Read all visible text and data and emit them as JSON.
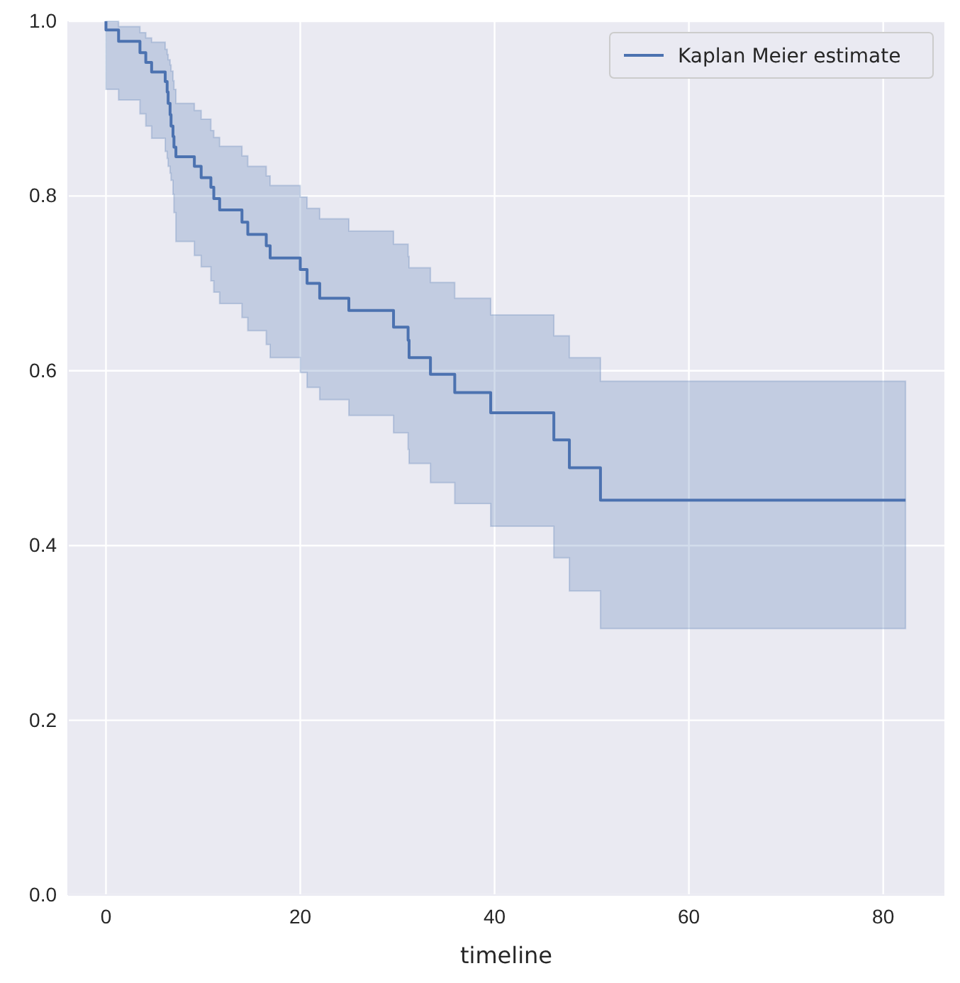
{
  "chart_data": {
    "type": "step",
    "xlabel": "timeline",
    "x": [
      0,
      0,
      1.3,
      3.5,
      4.1,
      4.7,
      6.1,
      6.3,
      6.4,
      6.6,
      6.7,
      6.9,
      7.0,
      7.2,
      9.1,
      9.8,
      10.8,
      11.1,
      11.7,
      14.0,
      14.6,
      16.5,
      16.9,
      20.0,
      20.7,
      22.0,
      25.0,
      29.6,
      31.1,
      31.2,
      33.4,
      35.9,
      39.6,
      46.1,
      47.7,
      50.9,
      82.3
    ],
    "series": [
      {
        "name": "Kaplan Meier estimate",
        "color": "#4c72b0",
        "values": [
          1.0,
          0.99,
          0.977,
          0.964,
          0.953,
          0.942,
          0.931,
          0.919,
          0.906,
          0.893,
          0.88,
          0.868,
          0.856,
          0.845,
          0.834,
          0.821,
          0.81,
          0.797,
          0.784,
          0.77,
          0.756,
          0.743,
          0.729,
          0.716,
          0.7,
          0.683,
          0.669,
          0.65,
          0.635,
          0.615,
          0.596,
          0.575,
          0.552,
          0.521,
          0.489,
          0.452,
          0.452
        ],
        "lower": [
          0.922,
          0.922,
          0.91,
          0.894,
          0.88,
          0.866,
          0.851,
          0.843,
          0.834,
          0.826,
          0.818,
          0.802,
          0.781,
          0.748,
          0.732,
          0.719,
          0.703,
          0.69,
          0.677,
          0.661,
          0.646,
          0.63,
          0.615,
          0.598,
          0.581,
          0.567,
          0.549,
          0.529,
          0.51,
          0.494,
          0.472,
          0.448,
          0.422,
          0.386,
          0.348,
          0.305,
          0.305
        ],
        "upper": [
          1.0,
          1.0,
          0.994,
          0.987,
          0.981,
          0.976,
          0.968,
          0.962,
          0.956,
          0.95,
          0.943,
          0.932,
          0.922,
          0.906,
          0.898,
          0.888,
          0.875,
          0.867,
          0.857,
          0.846,
          0.834,
          0.823,
          0.812,
          0.799,
          0.786,
          0.774,
          0.76,
          0.745,
          0.731,
          0.718,
          0.701,
          0.683,
          0.664,
          0.64,
          0.615,
          0.588,
          0.588
        ]
      }
    ],
    "xlim": [
      -3.9,
      86.3
    ],
    "ylim": [
      0,
      1
    ],
    "xticks": [
      0,
      20,
      40,
      60,
      80
    ],
    "yticks": [
      {
        "value": 0,
        "label": "0.0"
      },
      {
        "value": 0.2,
        "label": "0.2"
      },
      {
        "value": 0.4,
        "label": "0.4"
      },
      {
        "value": 0.6,
        "label": "0.6"
      },
      {
        "value": 0.8,
        "label": "0.8"
      },
      {
        "value": 1,
        "label": "1.0"
      }
    ],
    "grid": true,
    "legend": "top right",
    "line_style": "solid"
  }
}
